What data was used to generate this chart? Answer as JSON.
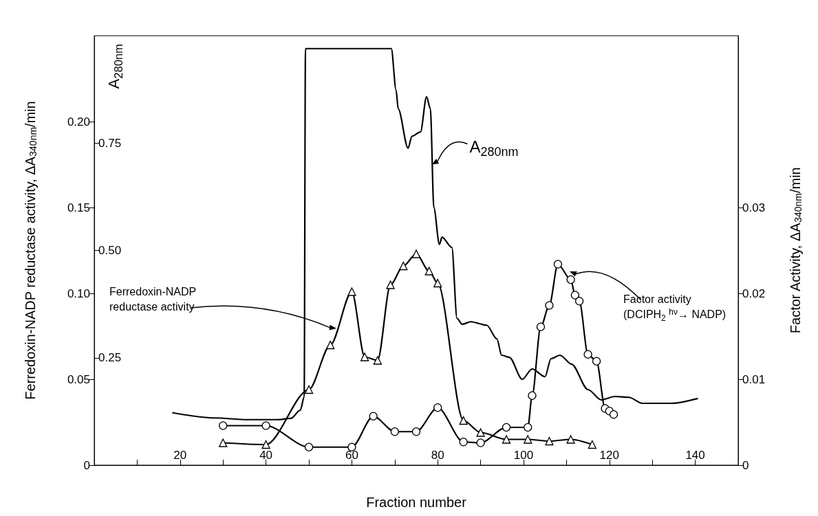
{
  "chart_data": {
    "type": "line",
    "xlabel": "Fraction number",
    "ylabel": "Ferredoxin-NADP reductase activity, ΔA$_{340nm}$/min",
    "y2label": "Factor Activity, ΔA$_{340nm}$/min",
    "y3label": "A$_{280nm}$",
    "xlim": [
      0,
      150
    ],
    "xticks": [
      {
        "value": 10,
        "label": null
      },
      20,
      {
        "value": 30,
        "label": null
      },
      40,
      {
        "value": 50,
        "label": null
      },
      60,
      {
        "value": 70,
        "label": null
      },
      80,
      {
        "value": 90,
        "label": null
      },
      100,
      {
        "value": 110,
        "label": null
      },
      120,
      {
        "value": 130,
        "label": null
      },
      140
    ],
    "ylim": [
      0,
      0.25
    ],
    "yticks": [
      0,
      {
        "value": 0.05,
        "label": "0.05"
      },
      {
        "value": 0.1,
        "label": "0.10"
      },
      {
        "value": 0.15,
        "label": "0.15"
      },
      {
        "value": 0.2,
        "label": "0.20"
      }
    ],
    "y2lim": [
      0,
      0.05
    ],
    "y2ticks": [
      0,
      {
        "value": 0.01,
        "label": "0.01"
      },
      {
        "value": 0.02,
        "label": "0.02"
      },
      {
        "value": 0.03,
        "label": "0.03"
      }
    ],
    "y3lim": [
      0,
      1
    ],
    "y3ticks": [
      {
        "value": 0.25,
        "label": "0.25"
      },
      {
        "value": 0.5,
        "label": "0.50"
      },
      {
        "value": 0.75,
        "label": "0.75"
      }
    ],
    "grid": false,
    "line_style": "solid",
    "series": [
      {
        "color": "#000000",
        "axis": "y3",
        "marker": "none",
        "x": [
          18.3,
          28,
          35.7,
          42.7,
          45.8,
          48,
          48.9,
          49.2,
          69.2,
          70.3,
          70.8,
          73.1,
          74,
          76,
          77.4,
          78.3,
          79.1,
          80.4,
          81,
          83.3,
          84.5,
          85.7,
          87.7,
          91.4,
          93.8,
          94.9,
          96.7,
          99.7,
          102,
          105,
          106.4,
          108.5,
          111.2,
          115,
          118.1,
          121.3,
          124.5,
          127.7,
          134.4,
          140.5
        ],
        "values": [
          0.122,
          0.11,
          0.106,
          0.106,
          0.109,
          0.128,
          0.159,
          0.97,
          0.97,
          0.874,
          0.83,
          0.738,
          0.766,
          0.776,
          0.858,
          0.83,
          0.6,
          0.514,
          0.531,
          0.507,
          0.342,
          0.328,
          0.334,
          0.326,
          0.294,
          0.256,
          0.251,
          0.2,
          0.224,
          0.206,
          0.248,
          0.256,
          0.235,
          0.176,
          0.152,
          0.16,
          0.158,
          0.144,
          0.144,
          0.155
        ]
      },
      {
        "color": "#000000",
        "axis": "y",
        "marker": "triangle",
        "x": [
          30,
          40,
          50,
          55,
          60,
          63,
          66,
          69,
          72,
          75,
          78,
          80,
          86,
          90,
          96,
          101,
          106,
          111,
          116
        ],
        "values": [
          0.013,
          0.012,
          0.044,
          0.07,
          0.101,
          0.063,
          0.061,
          0.105,
          0.116,
          0.123,
          0.113,
          0.106,
          0.026,
          0.019,
          0.015,
          0.015,
          0.014,
          0.015,
          0.012
        ]
      },
      {
        "color": "#000000",
        "axis": "y2",
        "marker": "circle",
        "x": [
          30,
          40,
          50,
          60,
          65,
          70,
          75,
          80,
          86,
          90,
          96,
          101,
          102,
          104,
          106,
          108,
          111,
          112,
          113,
          115,
          117,
          119,
          120,
          121
        ],
        "values": [
          0.0046,
          0.0046,
          0.0021,
          0.0021,
          0.0057,
          0.0039,
          0.0039,
          0.0067,
          0.0027,
          0.0026,
          0.0044,
          0.0044,
          0.0081,
          0.0161,
          0.0186,
          0.0234,
          0.0216,
          0.0198,
          0.0191,
          0.0129,
          0.0121,
          0.0066,
          0.0063,
          0.0059
        ]
      }
    ],
    "annotations": [
      "Ferredoxin-NADP\nreductase activity",
      {
        "text": "A$_{280nm}$",
        "x": 78.6,
        "y": 0.175
      },
      "Factor activity\n(DCIPH$_{2}$ $^{hν}$→ NADP)"
    ]
  }
}
